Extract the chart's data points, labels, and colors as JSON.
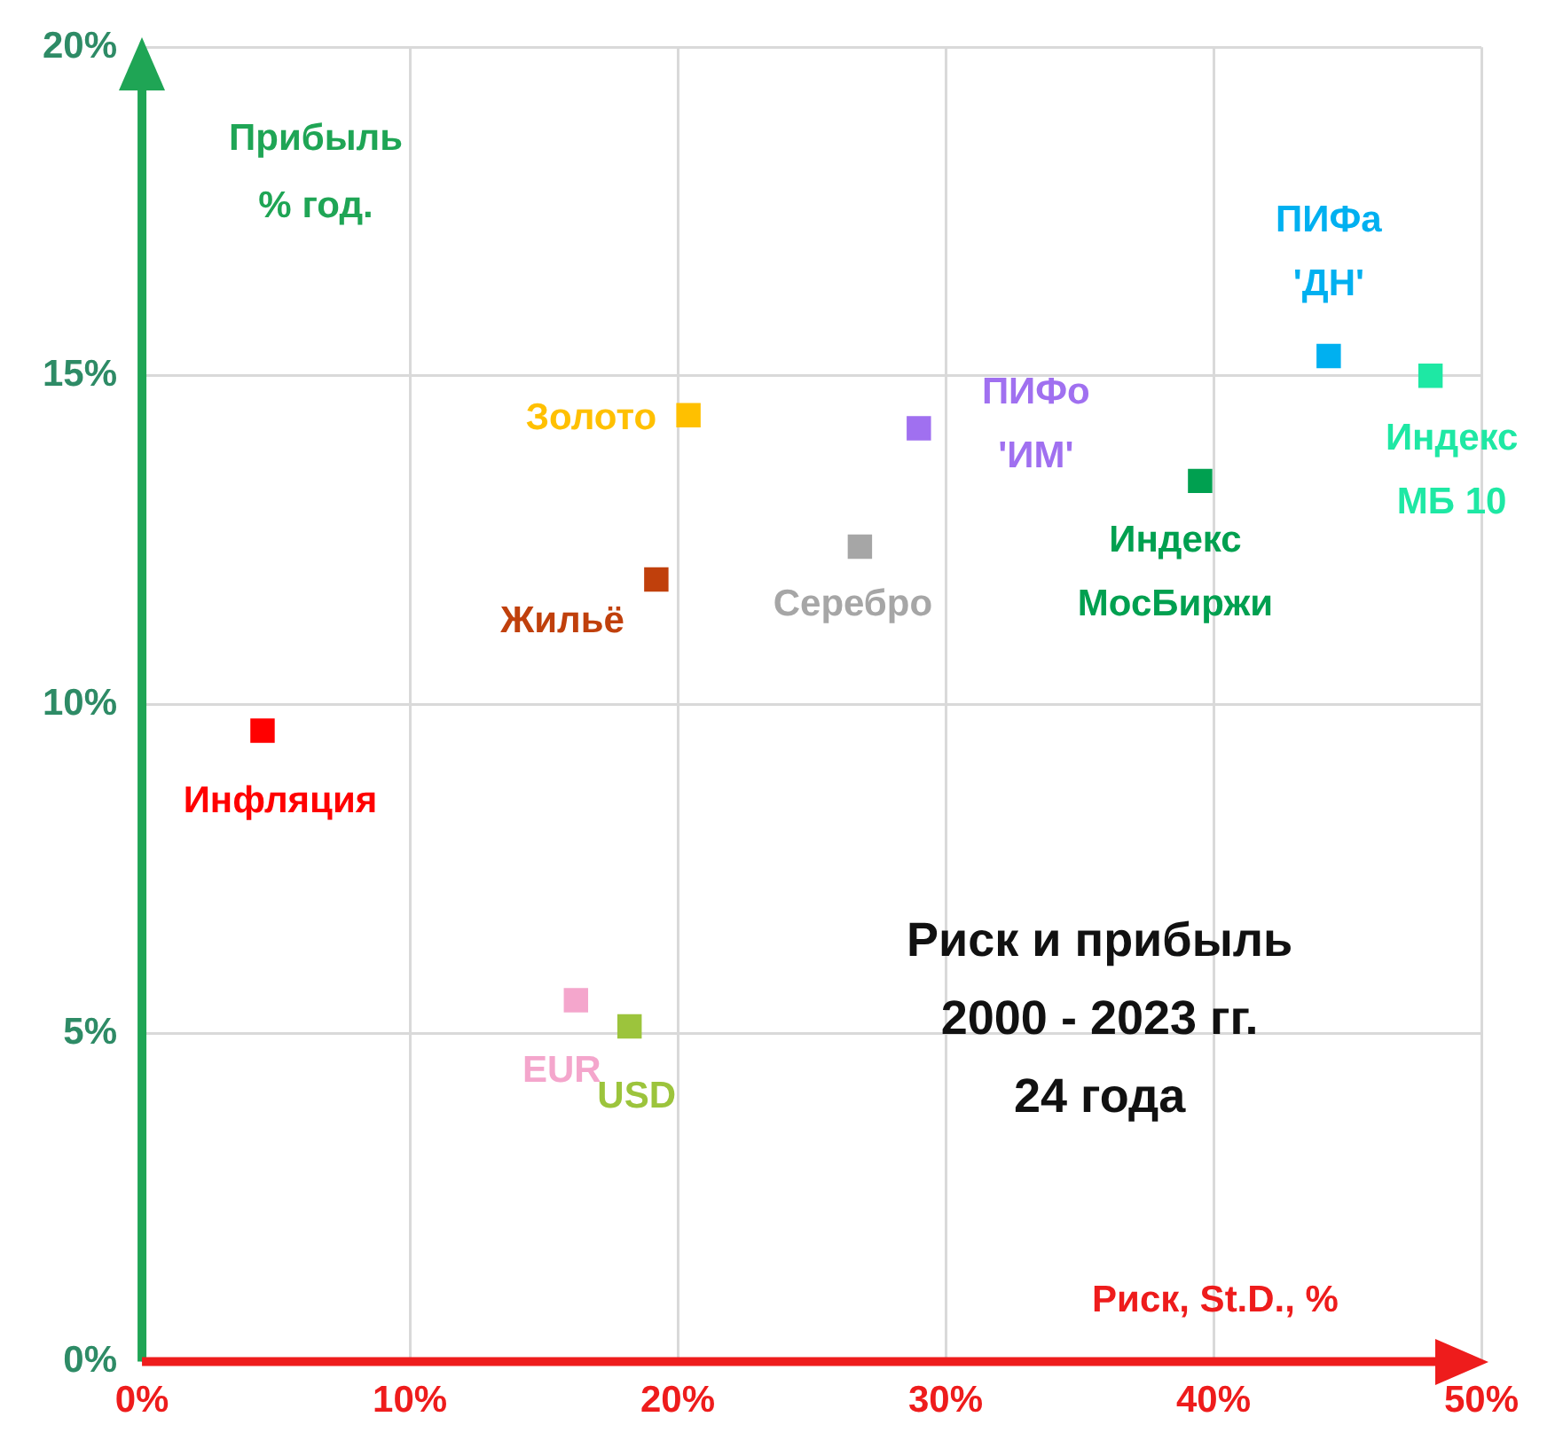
{
  "chart_data": {
    "type": "scatter",
    "xlabel": "Риск, St.D., %",
    "ylabel": "Прибыль\n% год.",
    "annotations": [
      "Риск и прибыль\n2000 - 2023 гг.\n24 года"
    ],
    "xlim": [
      0,
      50
    ],
    "ylim": [
      0,
      20
    ],
    "xticks": [
      {
        "value": 0,
        "label": "0%"
      },
      {
        "value": 10,
        "label": "10%"
      },
      {
        "value": 20,
        "label": "20%"
      },
      {
        "value": 30,
        "label": "30%"
      },
      {
        "value": 40,
        "label": "40%"
      },
      {
        "value": 50,
        "label": "50%"
      }
    ],
    "yticks": [
      {
        "value": 0,
        "label": "0%"
      },
      {
        "value": 5,
        "label": "5%"
      },
      {
        "value": 10,
        "label": "10%"
      },
      {
        "value": 15,
        "label": "15%"
      },
      {
        "value": 20,
        "label": "20%"
      }
    ],
    "grid": true,
    "legend": false,
    "marker": "square",
    "series": [
      {
        "name": "Инфляция",
        "color": "#ff0000",
        "x": [
          4.5
        ],
        "values": [
          9.6
        ]
      },
      {
        "name": "EUR",
        "color": "#f4a6cc",
        "x": [
          16.2
        ],
        "values": [
          5.5
        ]
      },
      {
        "name": "USD",
        "color": "#9cc43c",
        "x": [
          18.2
        ],
        "values": [
          5.1
        ]
      },
      {
        "name": "Жильё",
        "color": "#c0400c",
        "x": [
          19.2
        ],
        "values": [
          11.9
        ]
      },
      {
        "name": "Золото",
        "color": "#ffc000",
        "x": [
          20.4
        ],
        "values": [
          14.4
        ]
      },
      {
        "name": "Серебро",
        "color": "#a6a6a6",
        "x": [
          26.8
        ],
        "values": [
          12.4
        ]
      },
      {
        "name": "ПИФо\n'ИМ'",
        "color": "#a070f0",
        "x": [
          29.0
        ],
        "values": [
          14.2
        ]
      },
      {
        "name": "Индекс\nМосБиржи",
        "color": "#00a050",
        "x": [
          39.5
        ],
        "values": [
          13.4
        ]
      },
      {
        "name": "ПИФа\n'ДН'",
        "color": "#00b0f0",
        "x": [
          44.3
        ],
        "values": [
          15.3
        ]
      },
      {
        "name": "Индекс\nМБ 10",
        "color": "#1ee8a4",
        "x": [
          48.1
        ],
        "values": [
          15.0
        ]
      }
    ]
  }
}
